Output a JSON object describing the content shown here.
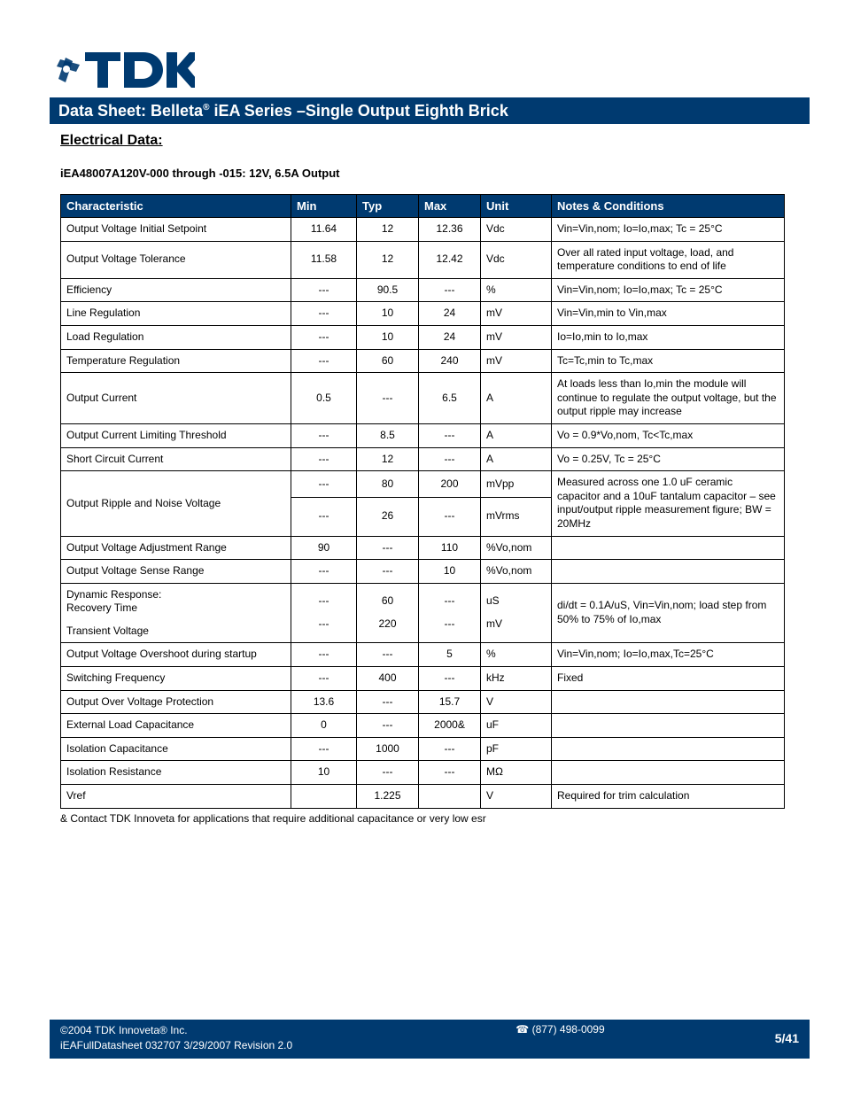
{
  "brand": "TDK",
  "header": {
    "prefix": "Data Sheet: Belleta",
    "suffix": " iEA Series –Single Output Eighth Brick"
  },
  "section_title": "Electrical Data:",
  "part_title": "iEA48007A120V-000 through -015: 12V, 6.5A Output",
  "columns": [
    "Characteristic",
    "Min",
    "Typ",
    "Max",
    "Unit",
    "Notes & Conditions"
  ],
  "rows": [
    {
      "c": "Output Voltage Initial Setpoint",
      "min": "11.64",
      "typ": "12",
      "max": "12.36",
      "unit": "Vdc",
      "notes": "Vin=Vin,nom; Io=Io,max; Tc = 25°C"
    },
    {
      "c": "Output Voltage Tolerance",
      "min": "11.58",
      "typ": "12",
      "max": "12.42",
      "unit": "Vdc",
      "notes": "Over all rated input voltage, load, and temperature conditions to end of life"
    },
    {
      "c": "Efficiency",
      "min": "---",
      "typ": "90.5",
      "max": "---",
      "unit": "%",
      "notes": "Vin=Vin,nom; Io=Io,max; Tc = 25°C"
    },
    {
      "c": "Line Regulation",
      "min": "---",
      "typ": "10",
      "max": "24",
      "unit": "mV",
      "notes": "Vin=Vin,min to Vin,max"
    },
    {
      "c": "Load Regulation",
      "min": "---",
      "typ": "10",
      "max": "24",
      "unit": "mV",
      "notes": "Io=Io,min to Io,max"
    },
    {
      "c": "Temperature Regulation",
      "min": "---",
      "typ": "60",
      "max": "240",
      "unit": "mV",
      "notes": "Tc=Tc,min to Tc,max"
    },
    {
      "c": "Output Current",
      "min": "0.5",
      "typ": "---",
      "max": "6.5",
      "unit": "A",
      "notes": "At loads less than Io,min the module will continue to regulate the output voltage, but the output ripple may increase"
    },
    {
      "c": "Output Current Limiting Threshold",
      "min": "---",
      "typ": "8.5",
      "max": "---",
      "unit": "A",
      "notes": "Vo = 0.9*Vo,nom, Tc<Tc,max"
    },
    {
      "c": "Short Circuit Current",
      "min": "---",
      "typ": "12",
      "max": "---",
      "unit": "A",
      "notes": "Vo = 0.25V, Tc = 25°C"
    }
  ],
  "ripple": {
    "c": "Output Ripple and Noise Voltage",
    "row1": {
      "min": "---",
      "typ": "80",
      "max": "200",
      "unit": "mVpp"
    },
    "row2": {
      "min": "---",
      "typ": "26",
      "max": "---",
      "unit": "mVrms"
    },
    "notes": "Measured across one 1.0 uF ceramic capacitor and a 10uF tantalum capacitor  – see input/output ripple measurement figure; BW = 20MHz"
  },
  "rows2": [
    {
      "c": "Output Voltage Adjustment Range",
      "min": "90",
      "typ": "---",
      "max": "110",
      "unit": "%Vo,nom",
      "notes": ""
    },
    {
      "c": "Output Voltage Sense Range",
      "min": "---",
      "typ": "---",
      "max": "10",
      "unit": "%Vo,nom",
      "notes": ""
    }
  ],
  "dynamic": {
    "c1": "Dynamic Response:",
    "c2": "Recovery Time",
    "c3": "Transient Voltage",
    "row1": {
      "min": "---",
      "typ": "60",
      "max": "---",
      "unit": "uS"
    },
    "row2": {
      "min": "---",
      "typ": "220",
      "max": "---",
      "unit": "mV"
    },
    "notes": "di/dt = 0.1A/uS, Vin=Vin,nom; load step from 50% to 75% of Io,max"
  },
  "rows3": [
    {
      "c": "Output Voltage Overshoot during startup",
      "min": "---",
      "typ": "---",
      "max": "5",
      "unit": "%",
      "notes": "Vin=Vin,nom; Io=Io,max,Tc=25°C"
    },
    {
      "c": "Switching Frequency",
      "min": "---",
      "typ": "400",
      "max": "---",
      "unit": "kHz",
      "notes": "Fixed"
    },
    {
      "c": "Output Over Voltage Protection",
      "min": "13.6",
      "typ": "---",
      "max": "15.7",
      "unit": "V",
      "notes": ""
    },
    {
      "c": "External Load Capacitance",
      "min": "0",
      "typ": "---",
      "max": "2000&",
      "unit": "uF",
      "notes": ""
    },
    {
      "c": "Isolation Capacitance",
      "min": "---",
      "typ": "1000",
      "max": "---",
      "unit": "pF",
      "notes": ""
    },
    {
      "c": "Isolation Resistance",
      "min": "10",
      "typ": "---",
      "max": "---",
      "unit": "MΩ",
      "notes": ""
    },
    {
      "c": "Vref",
      "min": "",
      "typ": "1.225",
      "max": "",
      "unit": "V",
      "notes": "Required for trim calculation"
    }
  ],
  "footnote": "& Contact TDK Innoveta for applications that require additional capacitance or very low esr",
  "footer": {
    "copyright": "©2004  TDK Innoveta®  Inc.",
    "docinfo": "iEAFullDatasheet 032707  3/29/2007  Revision 2.0",
    "phone": "☎ (877) 498-0099",
    "page": "5/41"
  },
  "colors": {
    "header_bg": "#003a70",
    "border": "#000000",
    "text": "#000000",
    "white": "#ffffff"
  }
}
